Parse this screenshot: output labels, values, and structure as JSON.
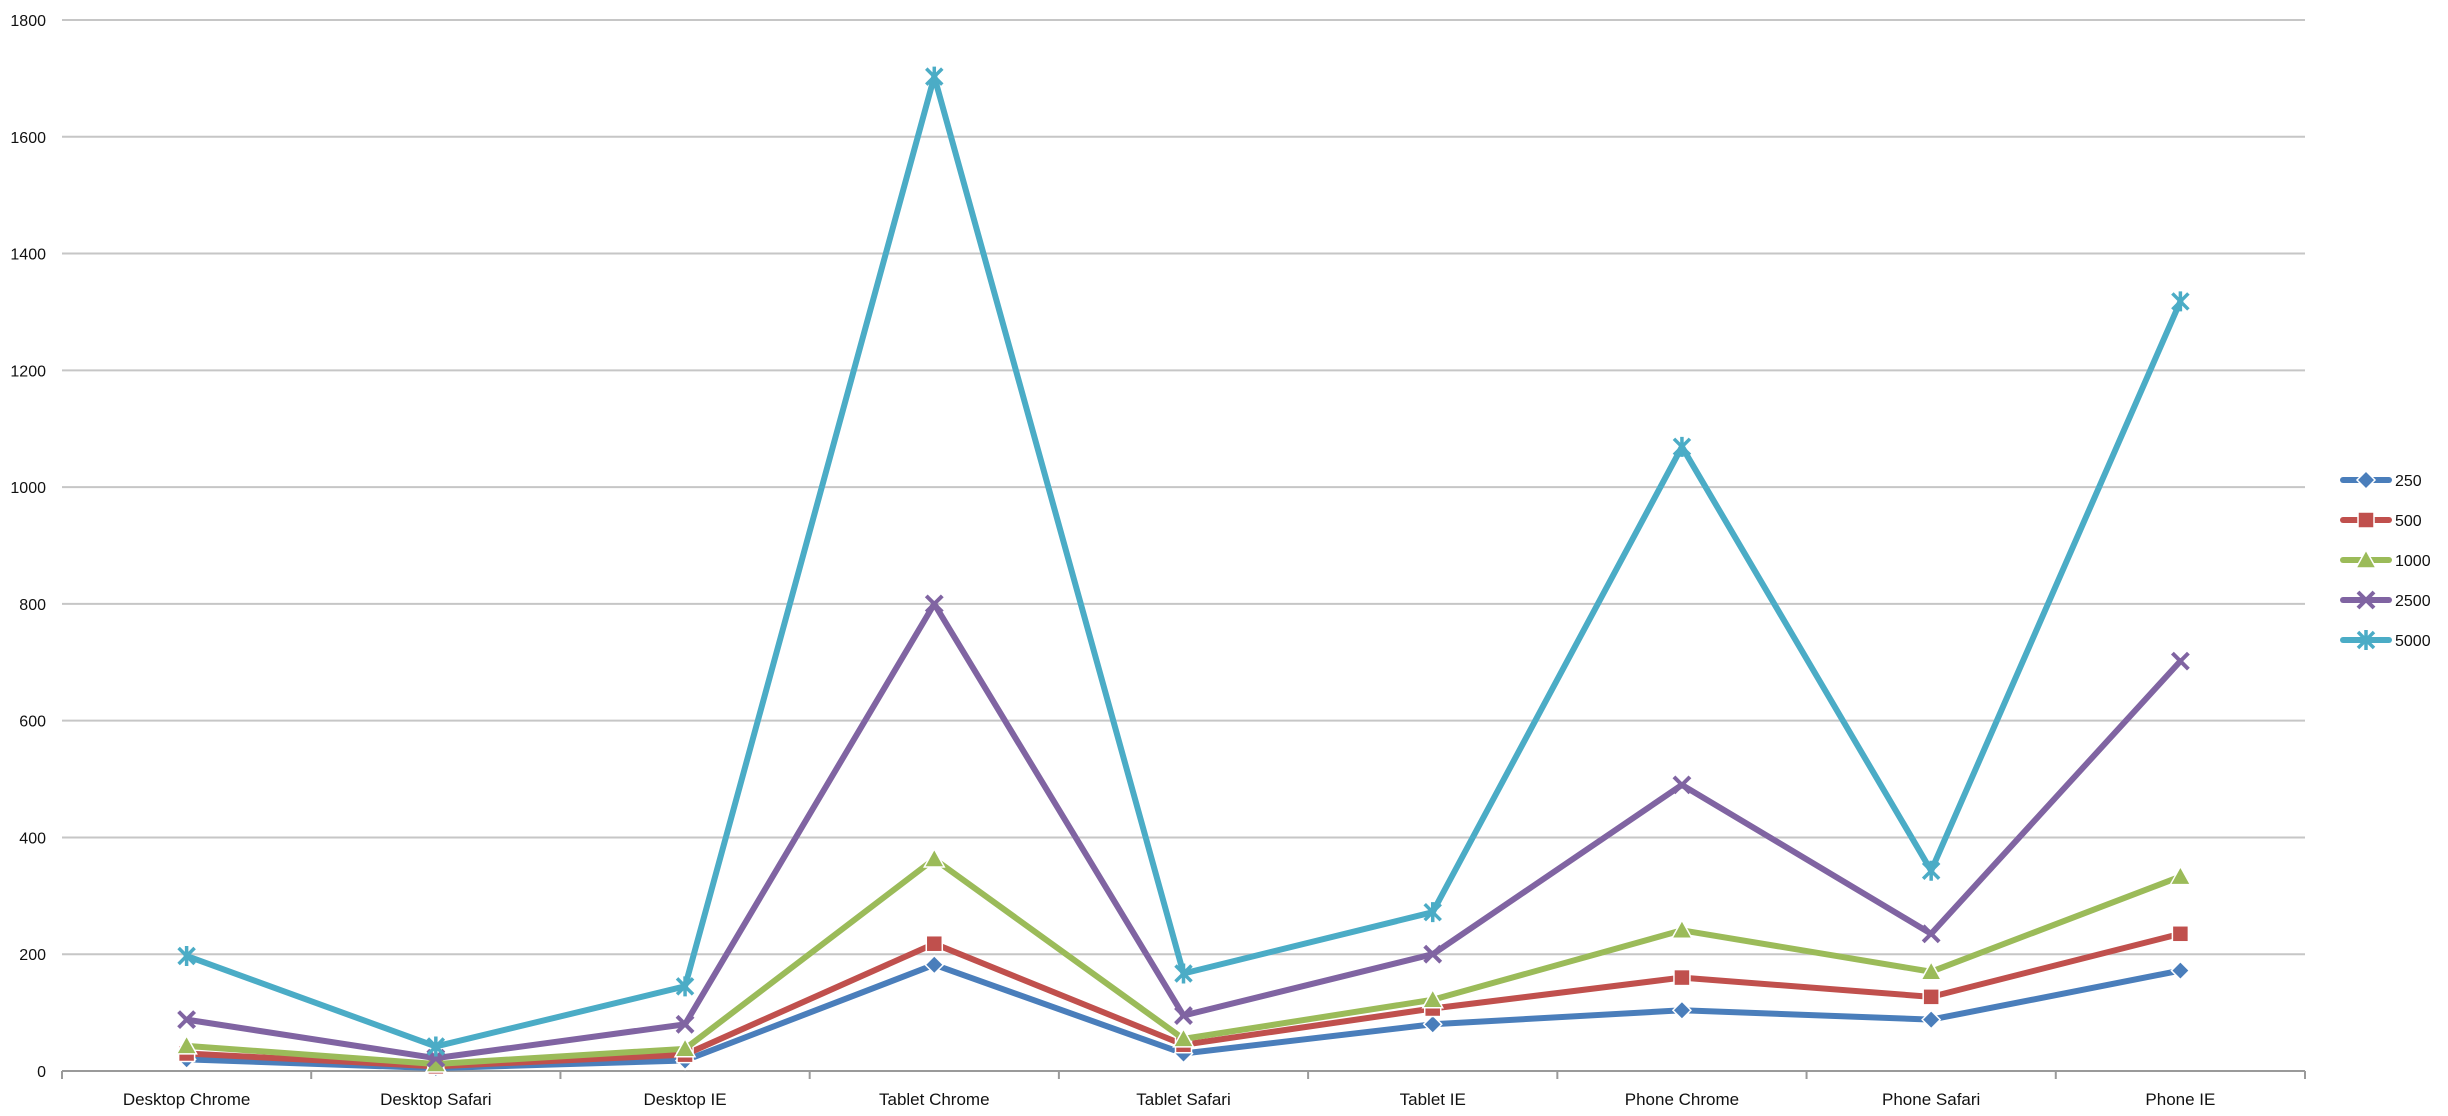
{
  "chart_data": {
    "type": "line",
    "title": "",
    "xlabel": "",
    "ylabel": "",
    "ylim": [
      0,
      1800
    ],
    "yticks": [
      0,
      200,
      400,
      600,
      800,
      1000,
      1200,
      1400,
      1600,
      1800
    ],
    "grid": true,
    "legend_position": "right",
    "categories": [
      "Desktop Chrome",
      "Desktop Safari",
      "Desktop IE",
      "Tablet Chrome",
      "Tablet Safari",
      "Tablet IE",
      "Phone Chrome",
      "Phone Safari",
      "Phone IE"
    ],
    "series": [
      {
        "name": "250",
        "color": "#4a7ebb",
        "marker": "diamond",
        "values": [
          20,
          5,
          18,
          182,
          30,
          80,
          104,
          88,
          172
        ]
      },
      {
        "name": "500",
        "color": "#c0504d",
        "marker": "square",
        "values": [
          30,
          8,
          28,
          218,
          45,
          107,
          160,
          127,
          235
        ]
      },
      {
        "name": "1000",
        "color": "#9bbb59",
        "marker": "triangle",
        "values": [
          43,
          12,
          38,
          363,
          55,
          122,
          241,
          170,
          333
        ]
      },
      {
        "name": "2500",
        "color": "#8064a2",
        "marker": "x",
        "values": [
          88,
          22,
          80,
          800,
          95,
          200,
          490,
          235,
          702
        ]
      },
      {
        "name": "5000",
        "color": "#4bacc6",
        "marker": "asterisk",
        "values": [
          197,
          42,
          145,
          1703,
          167,
          272,
          1069,
          343,
          1318
        ]
      }
    ]
  }
}
